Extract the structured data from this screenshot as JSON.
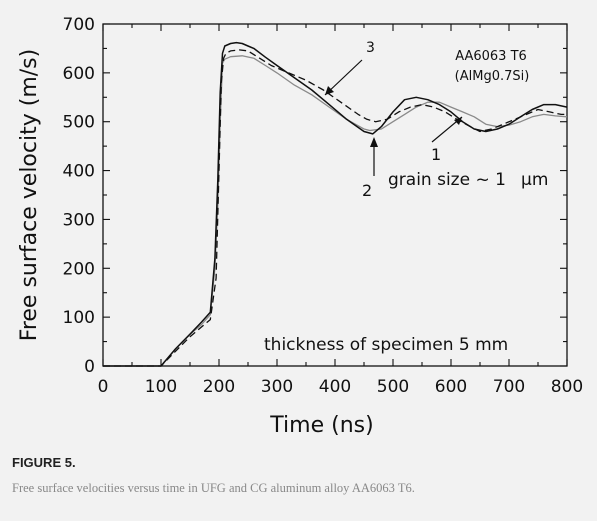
{
  "figure": {
    "label": "FIGURE 5.",
    "caption": "Free surface velocities versus time in UFG and CG aluminum alloy AA6063 T6."
  },
  "chart_data": {
    "type": "line",
    "xlabel": "Time (ns)",
    "ylabel": "Free surface velocity (m/s)",
    "xlim": [
      0,
      800
    ],
    "ylim": [
      0,
      700
    ],
    "xticks": [
      0,
      100,
      200,
      300,
      400,
      500,
      600,
      700,
      800
    ],
    "yticks": [
      0,
      100,
      200,
      300,
      400,
      500,
      600,
      700
    ],
    "grid": false,
    "series": [
      {
        "name": "1",
        "style": "solid-gray",
        "color": "#8a8a8a",
        "x": [
          0,
          100,
          125,
          150,
          170,
          185,
          193,
          198,
          202,
          206,
          210,
          220,
          240,
          260,
          280,
          300,
          330,
          360,
          390,
          420,
          450,
          460,
          480,
          500,
          520,
          540,
          560,
          580,
          600,
          620,
          640,
          660,
          680,
          700,
          720,
          740,
          760,
          780,
          800
        ],
        "y": [
          0,
          0,
          35,
          65,
          85,
          105,
          200,
          330,
          500,
          620,
          628,
          633,
          635,
          630,
          615,
          600,
          575,
          555,
          530,
          505,
          485,
          482,
          485,
          500,
          515,
          530,
          540,
          540,
          530,
          520,
          510,
          495,
          490,
          493,
          500,
          510,
          515,
          512,
          510
        ]
      },
      {
        "name": "2",
        "style": "solid-black",
        "color": "#111111",
        "x": [
          0,
          100,
          125,
          150,
          170,
          185,
          193,
          198,
          202,
          206,
          210,
          220,
          230,
          240,
          250,
          260,
          280,
          300,
          330,
          360,
          390,
          420,
          450,
          465,
          480,
          500,
          520,
          540,
          560,
          580,
          600,
          620,
          640,
          660,
          680,
          700,
          720,
          740,
          760,
          780,
          800
        ],
        "y": [
          0,
          0,
          35,
          65,
          90,
          110,
          220,
          380,
          560,
          640,
          655,
          660,
          662,
          660,
          655,
          650,
          632,
          615,
          590,
          565,
          535,
          505,
          480,
          475,
          490,
          520,
          545,
          550,
          545,
          535,
          520,
          500,
          485,
          480,
          485,
          495,
          510,
          525,
          535,
          535,
          530
        ]
      },
      {
        "name": "3",
        "style": "dashed-black",
        "color": "#111111",
        "x": [
          0,
          100,
          125,
          150,
          170,
          185,
          195,
          200,
          204,
          208,
          212,
          220,
          235,
          250,
          270,
          290,
          320,
          350,
          380,
          410,
          440,
          455,
          470,
          490,
          510,
          530,
          550,
          570,
          590,
          610,
          630,
          650,
          670,
          690,
          710,
          730,
          750,
          770,
          790,
          800
        ],
        "y": [
          0,
          0,
          30,
          60,
          80,
          95,
          180,
          400,
          580,
          630,
          640,
          645,
          647,
          645,
          630,
          615,
          600,
          585,
          565,
          540,
          515,
          505,
          500,
          505,
          520,
          530,
          535,
          530,
          520,
          505,
          492,
          480,
          485,
          495,
          505,
          515,
          525,
          520,
          515,
          515
        ]
      }
    ],
    "annotations": {
      "material": [
        "AA6063 T6",
        "(AlMg0.7Si)"
      ],
      "label_1": "1",
      "label_2": "2",
      "label_3": "3",
      "grain_size": "grain size ~ 1",
      "grain_unit": "μm",
      "thickness": "thickness of specimen 5 mm"
    }
  }
}
